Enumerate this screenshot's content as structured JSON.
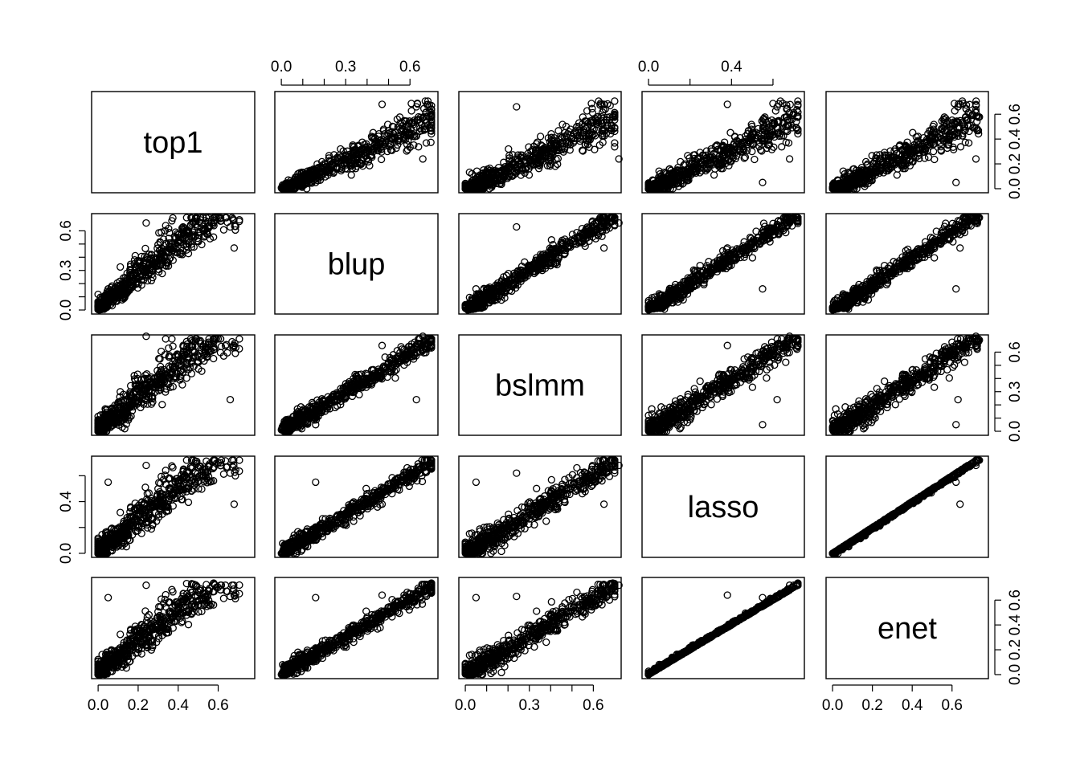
{
  "chart_data": {
    "type": "scatter",
    "kind": "pairs-matrix",
    "variables": [
      "top1",
      "blup",
      "bslmm",
      "lasso",
      "enet"
    ],
    "variable_ranges": {
      "top1": [
        0.0,
        0.75
      ],
      "blup": [
        0.0,
        0.7
      ],
      "bslmm": [
        0.0,
        0.7
      ],
      "lasso": [
        0.0,
        0.72
      ],
      "enet": [
        0.0,
        0.75
      ]
    },
    "axes": {
      "top1": {
        "ticks": [
          0.0,
          0.2,
          0.4,
          0.6
        ],
        "tick_labels": [
          "0.0",
          "0.2",
          "0.4",
          "0.6"
        ]
      },
      "blup": {
        "ticks": [
          0.0,
          0.3,
          0.6
        ],
        "tick_labels": [
          "0.0",
          "0.3",
          "0.6"
        ],
        "minor_ticks": [
          0.1,
          0.2,
          0.4,
          0.5
        ]
      },
      "bslmm": {
        "ticks": [
          0.0,
          0.3,
          0.6
        ],
        "tick_labels": [
          "0.0",
          "0.3",
          "0.6"
        ],
        "minor_ticks": [
          0.1,
          0.2,
          0.4,
          0.5
        ]
      },
      "lasso": {
        "ticks": [
          0.0,
          0.4
        ],
        "tick_labels": [
          "0.0",
          "0.4"
        ],
        "minor_ticks": [
          0.2,
          0.6
        ]
      },
      "enet": {
        "ticks": [
          0.0,
          0.2,
          0.4,
          0.6
        ],
        "tick_labels": [
          "0.0",
          "0.2",
          "0.4",
          "0.6"
        ]
      }
    },
    "axis_placement": {
      "top1": "bottom",
      "blup": "top-left",
      "bslmm": "bottom-right",
      "lasso": "top-left",
      "enet": "bottom-right"
    },
    "relationships": [
      {
        "pair": [
          "top1",
          "blup"
        ],
        "trend": "positive, strong",
        "approx_slope": 0.95,
        "spread": 0.08
      },
      {
        "pair": [
          "top1",
          "bslmm"
        ],
        "trend": "positive, moderate",
        "approx_slope": 0.9,
        "spread": 0.1
      },
      {
        "pair": [
          "top1",
          "lasso"
        ],
        "trend": "positive, concave",
        "approx_slope": 0.95,
        "spread": 0.09
      },
      {
        "pair": [
          "top1",
          "enet"
        ],
        "trend": "positive, concave",
        "approx_slope": 0.95,
        "spread": 0.09
      },
      {
        "pair": [
          "blup",
          "bslmm"
        ],
        "trend": "positive, strong",
        "approx_slope": 1.0,
        "spread": 0.04
      },
      {
        "pair": [
          "blup",
          "lasso"
        ],
        "trend": "positive, strong",
        "approx_slope": 1.0,
        "spread": 0.035
      },
      {
        "pair": [
          "blup",
          "enet"
        ],
        "trend": "positive, strong",
        "approx_slope": 1.0,
        "spread": 0.03
      },
      {
        "pair": [
          "bslmm",
          "lasso"
        ],
        "trend": "positive, strong",
        "approx_slope": 1.0,
        "spread": 0.05
      },
      {
        "pair": [
          "bslmm",
          "enet"
        ],
        "trend": "positive, strong",
        "approx_slope": 1.0,
        "spread": 0.05
      },
      {
        "pair": [
          "lasso",
          "enet"
        ],
        "trend": "near identity",
        "approx_slope": 1.0,
        "spread": 0.012
      }
    ],
    "n_points_per_panel_approx": 600,
    "marker": "open-circle",
    "color": "#000000",
    "grid": false,
    "legend": "none"
  }
}
